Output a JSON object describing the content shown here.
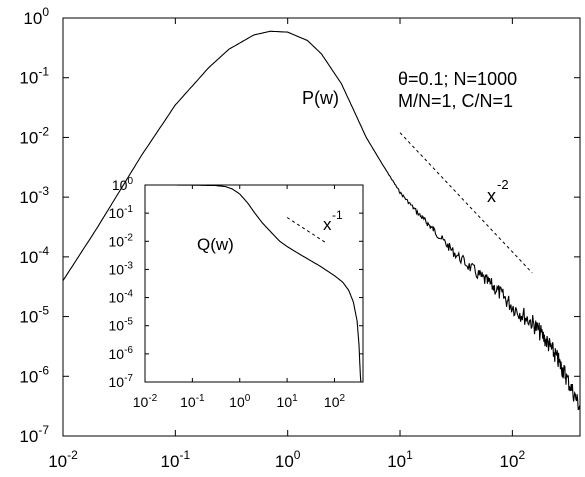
{
  "chart_data": [
    {
      "type": "line",
      "scale": "log-log",
      "xlim": [
        0.01,
        400
      ],
      "ylim": [
        1e-07,
        1
      ],
      "x_ticks": [
        {
          "base": "10",
          "exp": "-2",
          "value": 0.01
        },
        {
          "base": "10",
          "exp": "-1",
          "value": 0.1
        },
        {
          "base": "10",
          "exp": "0",
          "value": 1
        },
        {
          "base": "10",
          "exp": "1",
          "value": 10
        },
        {
          "base": "10",
          "exp": "2",
          "value": 100
        }
      ],
      "y_ticks": [
        {
          "base": "10",
          "exp": "0",
          "value": 1
        },
        {
          "base": "10",
          "exp": "-1",
          "value": 0.1
        },
        {
          "base": "10",
          "exp": "-2",
          "value": 0.01
        },
        {
          "base": "10",
          "exp": "-3",
          "value": 0.001
        },
        {
          "base": "10",
          "exp": "-4",
          "value": 0.0001
        },
        {
          "base": "10",
          "exp": "-5",
          "value": 1e-05
        },
        {
          "base": "10",
          "exp": "-6",
          "value": 1e-06
        },
        {
          "base": "10",
          "exp": "-7",
          "value": 1e-07
        }
      ],
      "series": [
        {
          "name": "P(w)",
          "color": "#000000",
          "x": [
            0.01,
            0.02,
            0.05,
            0.1,
            0.2,
            0.3,
            0.5,
            0.7,
            1.0,
            1.5,
            2.0,
            3.0,
            4.0,
            5.0,
            7.0,
            10,
            15,
            20,
            30,
            50,
            70,
            100,
            150,
            200,
            250,
            300,
            400
          ],
          "y": [
            4e-05,
            0.0003,
            0.005,
            0.035,
            0.15,
            0.3,
            0.52,
            0.6,
            0.58,
            0.42,
            0.25,
            0.08,
            0.025,
            0.01,
            0.0035,
            0.0012,
            0.0005,
            0.00028,
            0.00012,
            5e-05,
            3e-05,
            1.5e-05,
            8e-06,
            4e-06,
            2e-06,
            1e-06,
            3e-07
          ]
        }
      ],
      "guides": [
        {
          "label_base": "x",
          "label_exp": "-2",
          "x": [
            10,
            150
          ],
          "y": [
            0.012,
            5.4e-05
          ]
        }
      ],
      "annotations": {
        "series_label": "P(w)",
        "params_line1": "θ=0.1; N=1000",
        "params_line2": "M/N=1, C/N=1",
        "guide_label_base": "x",
        "guide_label_exp": "-2"
      },
      "legend": "none",
      "grid": false
    },
    {
      "type": "line",
      "role": "inset",
      "scale": "log-log",
      "xlim": [
        0.01,
        400
      ],
      "ylim": [
        1e-07,
        1
      ],
      "x_ticks": [
        {
          "base": "10",
          "exp": "-2",
          "value": 0.01
        },
        {
          "base": "10",
          "exp": "-1",
          "value": 0.1
        },
        {
          "base": "10",
          "exp": "0",
          "value": 1
        },
        {
          "base": "10",
          "exp": "1",
          "value": 10
        },
        {
          "base": "10",
          "exp": "2",
          "value": 100
        }
      ],
      "y_ticks": [
        {
          "base": "10",
          "exp": "0",
          "value": 1
        },
        {
          "base": "10",
          "exp": "-1",
          "value": 0.1
        },
        {
          "base": "10",
          "exp": "-2",
          "value": 0.01
        },
        {
          "base": "10",
          "exp": "-3",
          "value": 0.001
        },
        {
          "base": "10",
          "exp": "-4",
          "value": 0.0001
        },
        {
          "base": "10",
          "exp": "-5",
          "value": 1e-05
        },
        {
          "base": "10",
          "exp": "-6",
          "value": 1e-06
        },
        {
          "base": "10",
          "exp": "-7",
          "value": 1e-07
        }
      ],
      "series": [
        {
          "name": "Q(w)",
          "color": "#000000",
          "x": [
            0.01,
            0.03,
            0.1,
            0.3,
            0.5,
            0.7,
            1.0,
            1.5,
            2.0,
            3.0,
            5.0,
            7.0,
            10,
            20,
            50,
            100,
            150,
            200,
            250,
            300,
            330,
            350,
            360
          ],
          "y": [
            1.0,
            1.0,
            0.99,
            0.96,
            0.88,
            0.72,
            0.48,
            0.22,
            0.11,
            0.045,
            0.018,
            0.01,
            0.0065,
            0.0032,
            0.0013,
            0.0006,
            0.00035,
            0.00018,
            7e-05,
            1.5e-05,
            2e-06,
            2e-07,
            1e-07
          ]
        }
      ],
      "guides": [
        {
          "label_base": "x",
          "label_exp": "-1",
          "x": [
            10,
            65
          ],
          "y": [
            0.07,
            0.009
          ]
        }
      ],
      "annotations": {
        "series_label": "Q(w)",
        "guide_label_base": "x",
        "guide_label_exp": "-1"
      },
      "legend": "none",
      "grid": false
    }
  ]
}
